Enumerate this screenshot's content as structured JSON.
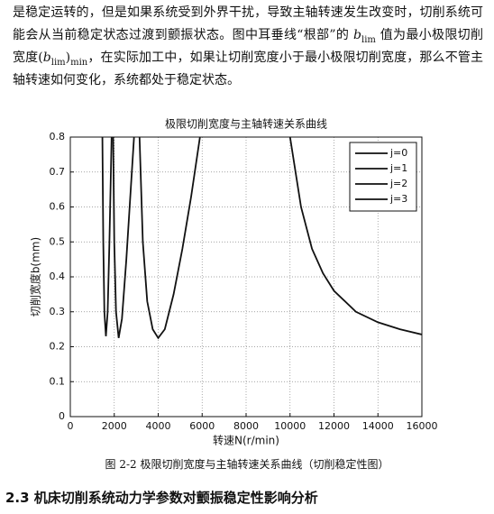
{
  "paragraph": {
    "runs": [
      "是稳定运转的，但是如果系统受到外界干扰，导致主轴转速发生改变时，切削系统可能会从当前稳定状态过渡到颤振状态。图中耳垂线“根部”的 ",
      "b",
      "lim",
      " 值为最小极限切削宽度(",
      "b",
      "lim",
      ")",
      "min",
      "，在实际加工中，如果让切削宽度小于最小极限切削宽度，那么不管主轴转速如何变化，系统都处于稳定状态。"
    ]
  },
  "chart_data": {
    "type": "line",
    "title": "极限切削宽度与主轴转速关系曲线",
    "xlabel": "转速N(r/min)",
    "ylabel": "切削宽度b(mm)",
    "xlim": [
      0,
      16000
    ],
    "xticks": [
      0,
      2000,
      4000,
      6000,
      8000,
      10000,
      12000,
      14000,
      16000
    ],
    "ylim": [
      0,
      0.8
    ],
    "yticks": [
      0,
      0.1,
      0.2,
      0.3,
      0.4,
      0.5,
      0.6,
      0.7,
      0.8
    ],
    "grid": true,
    "legend": "northeast",
    "series": [
      {
        "name": "j=0",
        "color": "#111111",
        "x": [
          10000,
          10500,
          11000,
          11500,
          12000,
          13000,
          14000,
          15000,
          16000
        ],
        "values": [
          0.8,
          0.6,
          0.48,
          0.41,
          0.36,
          0.3,
          0.27,
          0.25,
          0.235
        ]
      },
      {
        "name": "j=1",
        "color": "#111111",
        "x": [
          3150,
          3300,
          3500,
          3750,
          4000,
          4300,
          4700,
          5100,
          5500,
          5900
        ],
        "values": [
          0.8,
          0.5,
          0.33,
          0.25,
          0.225,
          0.25,
          0.35,
          0.48,
          0.63,
          0.8
        ]
      },
      {
        "name": "j=2",
        "color": "#111111",
        "x": [
          1950,
          2000,
          2080,
          2200,
          2350,
          2550,
          2750,
          2900
        ],
        "values": [
          0.8,
          0.5,
          0.3,
          0.225,
          0.28,
          0.45,
          0.65,
          0.8
        ]
      },
      {
        "name": "j=3",
        "color": "#111111",
        "x": [
          1460,
          1500,
          1550,
          1620,
          1700,
          1780,
          1880
        ],
        "values": [
          0.8,
          0.5,
          0.3,
          0.23,
          0.3,
          0.5,
          0.8
        ]
      }
    ]
  },
  "caption": "图 2-2 极限切削宽度与主轴转速关系曲线（切削稳定性图）",
  "heading": "2.3 机床切削系统动力学参数对颤振稳定性影响分析"
}
